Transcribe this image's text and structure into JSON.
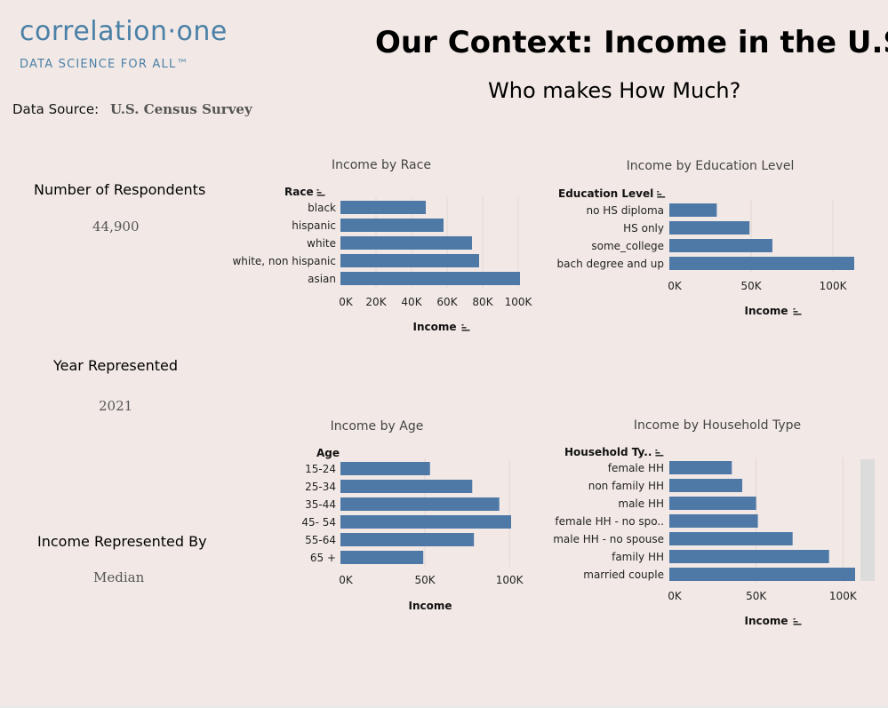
{
  "brand": {
    "logo_text": "correlation·one",
    "tagline": "DATA SCIENCE FOR ALL™"
  },
  "header": {
    "title": "Our Context: Income in the U.S.",
    "subtitle": "Who makes How Much?"
  },
  "data_source": {
    "label": "Data Source:",
    "value": "U.S. Census Survey"
  },
  "kpis": {
    "respondents": {
      "label": "Number of Respondents",
      "value": "44,900"
    },
    "year": {
      "label": "Year Represented",
      "value": "2021"
    },
    "income_by": {
      "label": "Income Represented By",
      "value": "Median"
    }
  },
  "colors": {
    "bar": "#4e79a7",
    "background": "#f2e9e6"
  },
  "chart_data": [
    {
      "type": "bar",
      "title": "Income by Race",
      "dimension_label": "Race",
      "xlabel": "Income",
      "categories": [
        "black",
        "hispanic",
        "white",
        "white, non hispanic",
        "asian"
      ],
      "values": [
        48000,
        58000,
        74000,
        78000,
        101000
      ],
      "xticks": [
        "0K",
        "20K",
        "40K",
        "60K",
        "80K",
        "100K"
      ],
      "xtick_values": [
        0,
        20000,
        40000,
        60000,
        80000,
        100000
      ],
      "xlim": [
        0,
        101000
      ],
      "dim_sort_icon": true,
      "measure_sort_icon": true
    },
    {
      "type": "bar",
      "title": "Income by Education Level",
      "dimension_label": "Education Level",
      "xlabel": "Income",
      "categories": [
        "no HS diploma",
        "HS only",
        "some_college",
        "bach degree and up"
      ],
      "values": [
        29000,
        49000,
        63000,
        113000
      ],
      "xticks": [
        "0K",
        "50K",
        "100K"
      ],
      "xtick_values": [
        0,
        50000,
        100000
      ],
      "xlim": [
        0,
        113000
      ],
      "dim_sort_icon": true,
      "measure_sort_icon": true
    },
    {
      "type": "bar",
      "title": "Income by Age",
      "dimension_label": "Age",
      "xlabel": "Income",
      "categories": [
        "15-24",
        "25-34",
        "35-44",
        "45- 54",
        "55-64",
        "65 +"
      ],
      "values": [
        53000,
        78000,
        94000,
        101000,
        79000,
        49000
      ],
      "xticks": [
        "0K",
        "50K",
        "100K"
      ],
      "xtick_values": [
        0,
        50000,
        100000
      ],
      "xlim": [
        0,
        101000
      ],
      "dim_sort_icon": false,
      "measure_sort_icon": false
    },
    {
      "type": "bar",
      "title": "Income by Household Type",
      "dimension_label": "Household Ty..",
      "xlabel": "Income",
      "categories": [
        "female HH",
        "non family HH",
        "male HH",
        "female HH - no spo..",
        "male HH - no spouse",
        "family HH",
        "married couple"
      ],
      "values": [
        36000,
        42000,
        50000,
        51000,
        71000,
        92000,
        107000
      ],
      "xticks": [
        "0K",
        "50K",
        "100K"
      ],
      "xtick_values": [
        0,
        50000,
        100000
      ],
      "xlim": [
        0,
        107000
      ],
      "dim_sort_icon": true,
      "measure_sort_icon": true
    }
  ]
}
